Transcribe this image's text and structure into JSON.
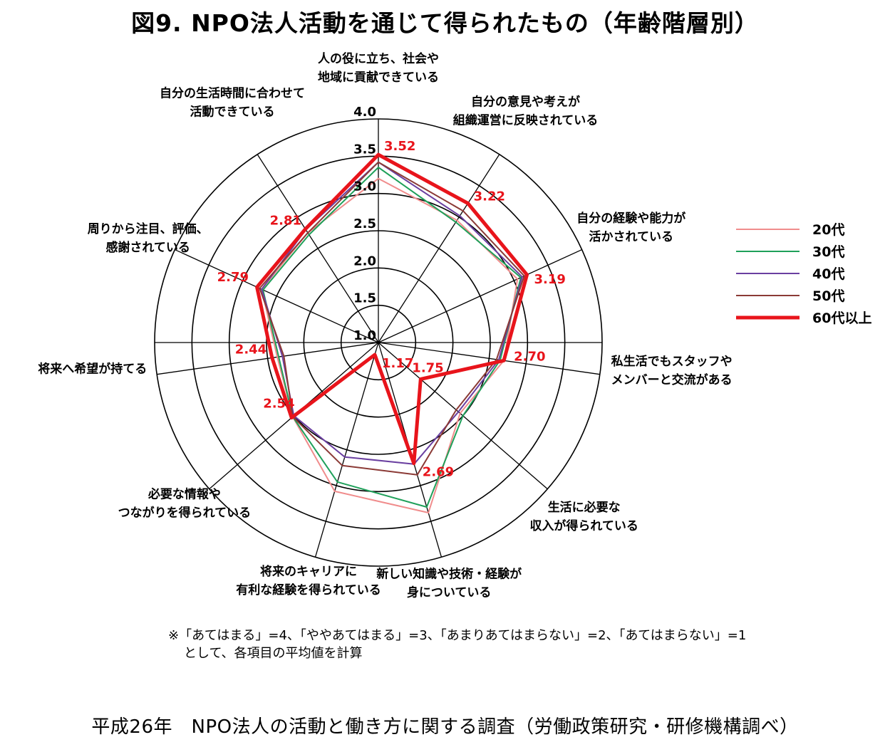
{
  "title": "図9. NPO法人活動を通じて得られたもの（年齢階層別）",
  "chart_data": {
    "type": "radar",
    "rlim": [
      1.0,
      4.0
    ],
    "ticks": [
      "1.0",
      "1.5",
      "2.0",
      "2.5",
      "3.0",
      "3.5",
      "4.0"
    ],
    "grid": true,
    "legend_position": "right",
    "categories": [
      [
        "人の役に立ち、社会や",
        "地域に貢献できている"
      ],
      [
        "自分の意見や考えが",
        "組織運営に反映されている"
      ],
      [
        "自分の経験や能力が",
        "活かされている"
      ],
      [
        "私生活でもスタッフや",
        "メンバーと交流がある"
      ],
      [
        "生活に必要な",
        "収入が得られている"
      ],
      [
        "新しい知識や技術・経験が",
        "身についている"
      ],
      [
        "将来のキャリアに",
        "有利な経験を得られている"
      ],
      [
        "必要な情報や",
        "つながりを得られている"
      ],
      [
        "将来へ希望が持てる"
      ],
      [
        "周りから注目、評価、",
        "感謝されている"
      ],
      [
        "自分の生活時間に合わせて",
        "活動できている"
      ]
    ],
    "series": [
      {
        "name": "20代",
        "color": "#f08c8c",
        "width": 2,
        "values": [
          3.2,
          2.95,
          3.05,
          2.7,
          2.45,
          3.38,
          3.08,
          2.52,
          2.37,
          2.72,
          2.75
        ]
      },
      {
        "name": "30代",
        "color": "#1fa05a",
        "width": 2,
        "values": [
          3.35,
          2.92,
          3.1,
          2.65,
          2.5,
          3.3,
          2.95,
          2.52,
          2.35,
          2.7,
          2.72
        ]
      },
      {
        "name": "40代",
        "color": "#6a3fa0",
        "width": 2,
        "values": [
          3.42,
          3.02,
          3.12,
          2.63,
          2.42,
          2.7,
          2.6,
          2.5,
          2.3,
          2.72,
          2.8
        ]
      },
      {
        "name": "50代",
        "color": "#8b3a36",
        "width": 2,
        "values": [
          3.42,
          3.1,
          3.15,
          2.6,
          2.38,
          2.85,
          2.72,
          2.52,
          2.28,
          2.75,
          2.75
        ]
      },
      {
        "name": "60代以上",
        "color": "#e8141b",
        "width": 5,
        "values": [
          3.52,
          3.22,
          3.19,
          2.7,
          1.75,
          2.69,
          1.17,
          2.54,
          2.44,
          2.79,
          2.81
        ]
      }
    ],
    "value_labels": [
      "3.52",
      "3.22",
      "3.19",
      "2.70",
      "1.75",
      "2.69",
      "1.17",
      "2.54",
      "2.44",
      "2.79",
      "2.81"
    ]
  },
  "footnote": {
    "line1": "※「あてはまる」=4、「ややあてはまる」=3、「あまりあてはまらない」=2、「あてはまらない」=1",
    "line2": "として、各項目の平均値を計算"
  },
  "source": "平成26年　NPO法人の活動と働き方に関する調査（労働政策研究・研修機構調べ）"
}
